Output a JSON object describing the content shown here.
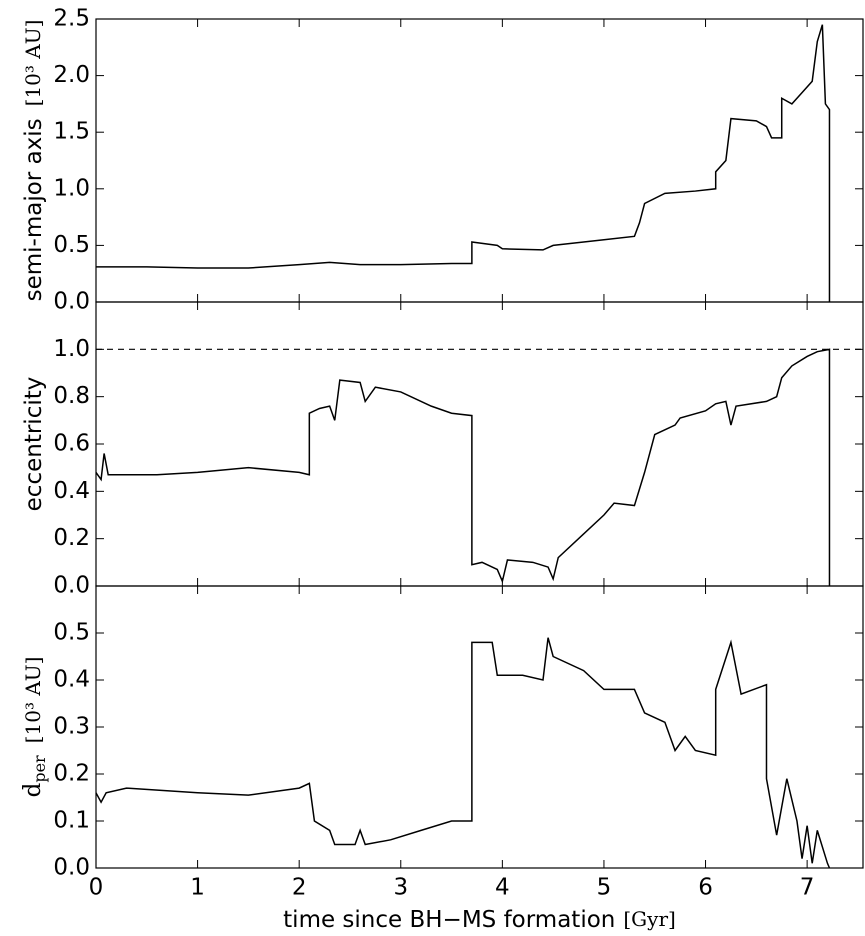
{
  "chart_data": [
    {
      "type": "line",
      "ylabel": "semi-major axis",
      "ylabel_unit": "[10³ AU]",
      "color": "#000000",
      "xlim": [
        0,
        7.55
      ],
      "ylim": [
        0,
        2.5
      ],
      "yticks": [
        {
          "value": 0,
          "label": "0.0"
        },
        0.5,
        {
          "value": 1,
          "label": "1.0"
        },
        1.5,
        {
          "value": 2,
          "label": "2.0"
        },
        2.5
      ],
      "x": [
        0,
        0.5,
        1.0,
        1.5,
        2.0,
        2.3,
        2.6,
        3.0,
        3.5,
        3.7,
        3.7,
        3.95,
        4.0,
        4.4,
        4.5,
        4.8,
        5.0,
        5.3,
        5.35,
        5.4,
        5.6,
        5.9,
        6.1,
        6.1,
        6.2,
        6.25,
        6.5,
        6.6,
        6.65,
        6.75,
        6.75,
        6.85,
        6.95,
        7.05,
        7.1,
        7.15,
        7.18,
        7.22,
        7.22
      ],
      "values": [
        0.31,
        0.31,
        0.3,
        0.3,
        0.33,
        0.35,
        0.33,
        0.33,
        0.34,
        0.34,
        0.53,
        0.5,
        0.47,
        0.46,
        0.5,
        0.53,
        0.55,
        0.58,
        0.7,
        0.87,
        0.96,
        0.98,
        1.0,
        1.15,
        1.25,
        1.62,
        1.6,
        1.55,
        1.45,
        1.45,
        1.8,
        1.75,
        1.85,
        1.95,
        2.3,
        2.45,
        1.75,
        1.7,
        0.0
      ]
    },
    {
      "type": "line",
      "ylabel": "eccentricity",
      "color": "#000000",
      "xlim": [
        0,
        7.55
      ],
      "ylim": [
        0,
        1.2
      ],
      "hline": 1.0,
      "yticks": [
        {
          "value": 0,
          "label": "0.0"
        },
        0.2,
        0.4,
        0.6,
        0.8,
        {
          "value": 1,
          "label": "1.0"
        }
      ],
      "x": [
        0,
        0.05,
        0.08,
        0.12,
        0.6,
        1.0,
        1.5,
        2.0,
        2.1,
        2.1,
        2.2,
        2.3,
        2.35,
        2.4,
        2.6,
        2.65,
        2.75,
        3.0,
        3.3,
        3.5,
        3.7,
        3.7,
        3.8,
        3.95,
        4.0,
        4.05,
        4.3,
        4.45,
        4.5,
        4.55,
        4.8,
        5.0,
        5.1,
        5.3,
        5.4,
        5.5,
        5.7,
        5.75,
        6.0,
        6.1,
        6.2,
        6.25,
        6.3,
        6.6,
        6.7,
        6.75,
        6.85,
        7.0,
        7.1,
        7.22,
        7.22
      ],
      "values": [
        0.48,
        0.45,
        0.56,
        0.47,
        0.47,
        0.48,
        0.5,
        0.48,
        0.47,
        0.73,
        0.75,
        0.76,
        0.7,
        0.87,
        0.86,
        0.78,
        0.84,
        0.82,
        0.76,
        0.73,
        0.72,
        0.09,
        0.1,
        0.07,
        0.02,
        0.11,
        0.1,
        0.08,
        0.03,
        0.12,
        0.22,
        0.3,
        0.35,
        0.34,
        0.48,
        0.64,
        0.68,
        0.71,
        0.74,
        0.77,
        0.78,
        0.68,
        0.76,
        0.78,
        0.8,
        0.88,
        0.93,
        0.97,
        0.99,
        1.0,
        0.0
      ]
    },
    {
      "type": "line",
      "ylabel": "d",
      "ylabel_sub": "per",
      "ylabel_unit": "[10³ AU]",
      "xlabel": "time since BH−MS formation",
      "xlabel_unit": "[Gyr]",
      "color": "#000000",
      "xlim": [
        0,
        7.55
      ],
      "ylim": [
        0,
        0.6
      ],
      "xticks": [
        0,
        1,
        2,
        3,
        4,
        5,
        6,
        7
      ],
      "yticks": [
        {
          "value": 0,
          "label": "0.0"
        },
        0.1,
        0.2,
        0.3,
        0.4,
        0.5
      ],
      "x": [
        0,
        0.05,
        0.1,
        0.3,
        1.0,
        1.5,
        2.0,
        2.1,
        2.15,
        2.3,
        2.35,
        2.55,
        2.6,
        2.65,
        2.9,
        3.2,
        3.5,
        3.7,
        3.7,
        3.9,
        3.95,
        4.2,
        4.4,
        4.45,
        4.5,
        4.8,
        5.0,
        5.3,
        5.4,
        5.6,
        5.7,
        5.8,
        5.9,
        6.1,
        6.1,
        6.25,
        6.35,
        6.6,
        6.6,
        6.7,
        6.8,
        6.9,
        6.95,
        7.0,
        7.05,
        7.1,
        7.2,
        7.22
      ],
      "values": [
        0.16,
        0.14,
        0.16,
        0.17,
        0.16,
        0.155,
        0.17,
        0.18,
        0.1,
        0.08,
        0.05,
        0.05,
        0.08,
        0.05,
        0.06,
        0.08,
        0.1,
        0.1,
        0.48,
        0.48,
        0.41,
        0.41,
        0.4,
        0.49,
        0.45,
        0.42,
        0.38,
        0.38,
        0.33,
        0.31,
        0.25,
        0.28,
        0.25,
        0.24,
        0.38,
        0.48,
        0.37,
        0.39,
        0.19,
        0.07,
        0.19,
        0.1,
        0.02,
        0.09,
        0.01,
        0.08,
        0.01,
        0.0
      ]
    }
  ]
}
